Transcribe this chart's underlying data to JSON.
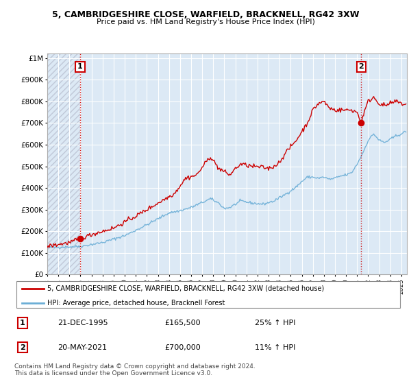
{
  "title_line1": "5, CAMBRIDGESHIRE CLOSE, WARFIELD, BRACKNELL, RG42 3XW",
  "title_line2": "Price paid vs. HM Land Registry's House Price Index (HPI)",
  "ylabel_ticks": [
    "£0",
    "£100K",
    "£200K",
    "£300K",
    "£400K",
    "£500K",
    "£600K",
    "£700K",
    "£800K",
    "£900K",
    "£1M"
  ],
  "ytick_values": [
    0,
    100000,
    200000,
    300000,
    400000,
    500000,
    600000,
    700000,
    800000,
    900000,
    1000000
  ],
  "xlim_start": 1993.0,
  "xlim_end": 2025.5,
  "ylim": [
    0,
    1020000
  ],
  "hpi_color": "#6baed6",
  "price_color": "#cc0000",
  "bg_plot_color": "#dce9f5",
  "hatch_color": "#c0c8d8",
  "grid_color": "#ffffff",
  "point1_x": 1995.97,
  "point1_y": 165500,
  "point1_label": "1",
  "point2_x": 2021.38,
  "point2_y": 700000,
  "point2_label": "2",
  "legend_label1": "5, CAMBRIDGESHIRE CLOSE, WARFIELD, BRACKNELL, RG42 3XW (detached house)",
  "legend_label2": "HPI: Average price, detached house, Bracknell Forest",
  "table_rows": [
    [
      "1",
      "21-DEC-1995",
      "£165,500",
      "25% ↑ HPI"
    ],
    [
      "2",
      "20-MAY-2021",
      "£700,000",
      "11% ↑ HPI"
    ]
  ],
  "footnote": "Contains HM Land Registry data © Crown copyright and database right 2024.\nThis data is licensed under the Open Government Licence v3.0."
}
